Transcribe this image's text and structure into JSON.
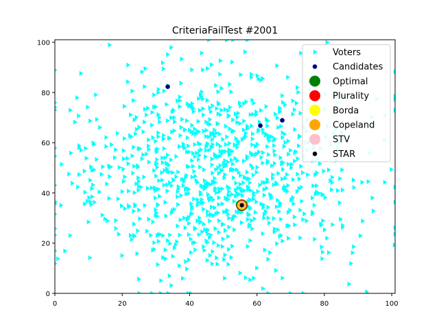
{
  "chart_data": {
    "type": "scatter",
    "title": "CriteriaFailTest #2001",
    "xlabel": "",
    "ylabel": "",
    "xlim": [
      0,
      101
    ],
    "ylim": [
      0,
      101
    ],
    "xticks": [
      0,
      20,
      40,
      60,
      80,
      100
    ],
    "yticks": [
      0,
      20,
      40,
      60,
      80,
      100
    ],
    "grid": false,
    "legend_position": "top-right",
    "voters": {
      "name": "Voters",
      "color": "#00ffff",
      "marker": "triangle-right",
      "distribution": {
        "center": [
          47,
          48
        ],
        "spread": [
          20,
          20
        ],
        "count": 1000,
        "clip": [
          0,
          101
        ]
      }
    },
    "candidates": {
      "name": "Candidates",
      "color": "#000080",
      "points": [
        {
          "x": 33.5,
          "y": 82.3
        },
        {
          "x": 61.0,
          "y": 66.8
        },
        {
          "x": 67.5,
          "y": 68.9
        },
        {
          "x": 55.5,
          "y": 35.1
        }
      ]
    },
    "winners": [
      {
        "name": "Optimal",
        "color": "#008000",
        "x": 55.5,
        "y": 35.1
      },
      {
        "name": "Plurality",
        "color": "#ff0000",
        "x": 55.5,
        "y": 35.1
      },
      {
        "name": "Borda",
        "color": "#ffff00",
        "x": 55.5,
        "y": 35.1
      },
      {
        "name": "Copeland",
        "color": "#ffa500",
        "x": 55.5,
        "y": 35.1
      },
      {
        "name": "STV",
        "color": "#ffc0cb",
        "x": 55.5,
        "y": 35.1
      },
      {
        "name": "STAR",
        "color": "#000000",
        "x": 55.5,
        "y": 35.1
      }
    ]
  }
}
